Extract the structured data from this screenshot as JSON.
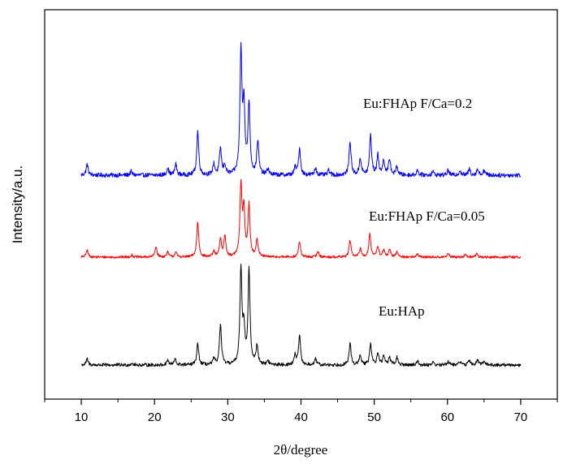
{
  "chart_data": {
    "type": "line",
    "title": "",
    "xlabel": "2θ/degree",
    "ylabel": "Intensity/a.u.",
    "xlim": [
      5,
      75
    ],
    "x_ticks": [
      10,
      20,
      30,
      40,
      50,
      60,
      70
    ],
    "y_ticks": [],
    "grid": false,
    "legend": "none",
    "x_range": [
      10,
      70
    ],
    "background": 0.0,
    "colors": {
      "Eu:HAp": "#000000",
      "Eu:FHAp F/Ca=0.05": "#ff0000",
      "Eu:FHAp F/Ca=0.2": "#0000ff"
    },
    "series": [
      {
        "name": "Eu:FHAp F/Ca=0.2",
        "peaks": [
          [
            10.8,
            0.09
          ],
          [
            16.8,
            0.03
          ],
          [
            21.8,
            0.06
          ],
          [
            22.9,
            0.09
          ],
          [
            25.9,
            0.36
          ],
          [
            28.1,
            0.09
          ],
          [
            29.0,
            0.22
          ],
          [
            29.6,
            0.08
          ],
          [
            31.8,
            1.0
          ],
          [
            32.2,
            0.55
          ],
          [
            32.9,
            0.58
          ],
          [
            34.1,
            0.28
          ],
          [
            35.5,
            0.05
          ],
          [
            39.2,
            0.06
          ],
          [
            39.8,
            0.22
          ],
          [
            42.0,
            0.06
          ],
          [
            43.8,
            0.04
          ],
          [
            46.7,
            0.28
          ],
          [
            48.1,
            0.14
          ],
          [
            49.5,
            0.33
          ],
          [
            50.5,
            0.16
          ],
          [
            51.3,
            0.12
          ],
          [
            52.1,
            0.13
          ],
          [
            53.1,
            0.07
          ],
          [
            55.9,
            0.04
          ],
          [
            58.0,
            0.03
          ],
          [
            60.1,
            0.04
          ],
          [
            61.7,
            0.04
          ],
          [
            63.0,
            0.05
          ],
          [
            64.1,
            0.05
          ],
          [
            65.0,
            0.04
          ]
        ]
      },
      {
        "name": "Eu:FHAp F/Ca=0.05",
        "peaks": [
          [
            10.8,
            0.1
          ],
          [
            16.9,
            0.03
          ],
          [
            20.2,
            0.15
          ],
          [
            21.8,
            0.07
          ],
          [
            22.9,
            0.07
          ],
          [
            25.9,
            0.5
          ],
          [
            28.1,
            0.08
          ],
          [
            29.0,
            0.25
          ],
          [
            29.6,
            0.3
          ],
          [
            31.8,
            1.0
          ],
          [
            32.2,
            0.65
          ],
          [
            32.9,
            0.72
          ],
          [
            34.0,
            0.25
          ],
          [
            39.8,
            0.22
          ],
          [
            42.3,
            0.08
          ],
          [
            46.7,
            0.24
          ],
          [
            48.1,
            0.12
          ],
          [
            49.4,
            0.33
          ],
          [
            50.5,
            0.15
          ],
          [
            51.3,
            0.1
          ],
          [
            52.1,
            0.1
          ],
          [
            53.1,
            0.08
          ],
          [
            55.9,
            0.05
          ],
          [
            60.1,
            0.05
          ],
          [
            62.5,
            0.04
          ],
          [
            64.0,
            0.05
          ]
        ]
      },
      {
        "name": "Eu:HAp",
        "peaks": [
          [
            10.8,
            0.06
          ],
          [
            16.9,
            0.02
          ],
          [
            21.8,
            0.05
          ],
          [
            22.8,
            0.06
          ],
          [
            25.9,
            0.22
          ],
          [
            28.1,
            0.06
          ],
          [
            29.0,
            0.42
          ],
          [
            31.8,
            1.0
          ],
          [
            32.2,
            0.35
          ],
          [
            32.9,
            0.98
          ],
          [
            34.0,
            0.2
          ],
          [
            35.5,
            0.04
          ],
          [
            39.2,
            0.1
          ],
          [
            39.8,
            0.3
          ],
          [
            42.0,
            0.06
          ],
          [
            46.7,
            0.22
          ],
          [
            48.1,
            0.1
          ],
          [
            49.5,
            0.22
          ],
          [
            50.5,
            0.13
          ],
          [
            51.3,
            0.1
          ],
          [
            52.1,
            0.08
          ],
          [
            53.1,
            0.08
          ],
          [
            55.9,
            0.04
          ],
          [
            58.0,
            0.03
          ],
          [
            60.1,
            0.04
          ],
          [
            61.7,
            0.04
          ],
          [
            63.0,
            0.05
          ],
          [
            64.1,
            0.05
          ],
          [
            65.0,
            0.05
          ]
        ]
      }
    ]
  }
}
